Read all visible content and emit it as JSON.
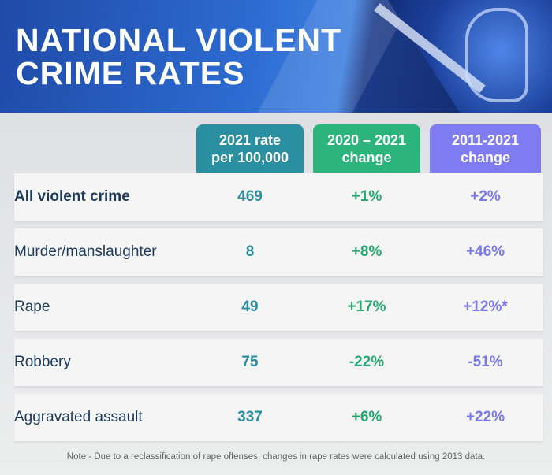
{
  "title": {
    "line1": "NATIONAL VIOLENT",
    "line2": "CRIME RATES"
  },
  "colors": {
    "rate": "#2a8fa0",
    "change_2020_2021": "#2bb57c",
    "change_2011_2021": "#7e7cf0"
  },
  "columns": [
    {
      "line1": "2021 rate",
      "line2": "per 100,000"
    },
    {
      "line1": "2020 – 2021",
      "line2": "change"
    },
    {
      "line1": "2011-2021",
      "line2": "change"
    }
  ],
  "rows": [
    {
      "label": "All violent crime",
      "rate": "469",
      "change_1yr": "+1%",
      "change_10yr": "+2%"
    },
    {
      "label": "Murder/manslaughter",
      "rate": "8",
      "change_1yr": "+8%",
      "change_10yr": "+46%"
    },
    {
      "label": "Rape",
      "rate": "49",
      "change_1yr": "+17%",
      "change_10yr": "+12%*"
    },
    {
      "label": "Robbery",
      "rate": "75",
      "change_1yr": "-22%",
      "change_10yr": "-51%"
    },
    {
      "label": "Aggravated assault",
      "rate": "337",
      "change_1yr": "+6%",
      "change_10yr": "+22%"
    }
  ],
  "note": "Note - Due to a reclassification of rape offenses, changes in rape rates were calculated using 2013 data."
}
